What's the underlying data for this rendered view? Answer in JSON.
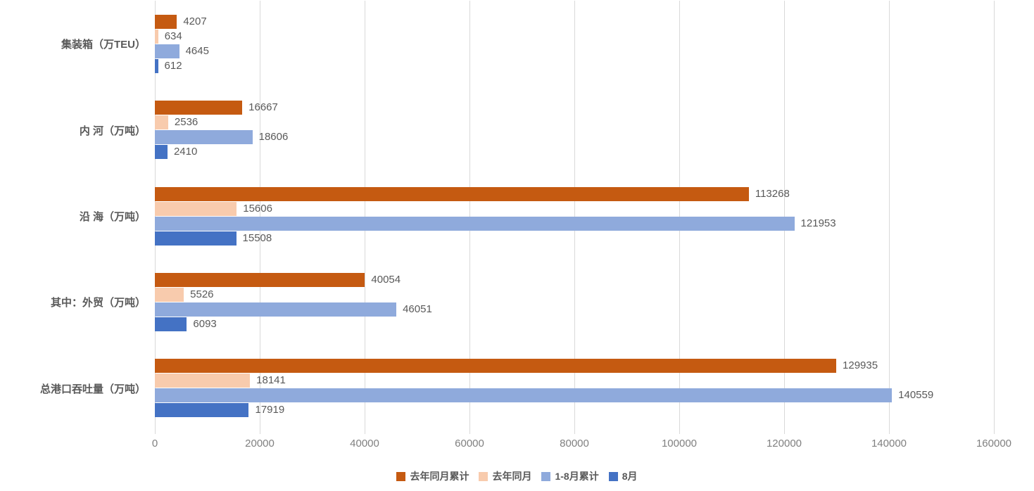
{
  "chart_data": {
    "type": "bar",
    "orientation": "horizontal",
    "title": "",
    "xlabel": "",
    "ylabel": "",
    "categories": [
      "集装箱（万TEU）",
      "内 河（万吨）",
      "沿 海（万吨）",
      "其中：外贸（万吨）",
      "总港口吞吐量（万吨）"
    ],
    "series": [
      {
        "name": "去年同月累计",
        "color": "#C55A11",
        "values": [
          4207,
          16667,
          113268,
          40054,
          129935
        ]
      },
      {
        "name": "去年同月",
        "color": "#F8CBAD",
        "values": [
          634,
          2536,
          15606,
          5526,
          18141
        ]
      },
      {
        "name": "1-8月累计",
        "color": "#8FAADC",
        "values": [
          4645,
          18606,
          121953,
          46051,
          140559
        ]
      },
      {
        "name": "8月",
        "color": "#4472C4",
        "values": [
          612,
          2410,
          15508,
          6093,
          17919
        ]
      }
    ],
    "data_labels_visible": true,
    "xlim": [
      0,
      160000
    ],
    "x_ticks": [
      0,
      20000,
      40000,
      60000,
      80000,
      100000,
      120000,
      140000,
      160000
    ],
    "grid": true,
    "legend_position": "bottom",
    "style": {
      "gridline_color": "#d9d9d9",
      "tick_label_color": "#808080",
      "value_label_color": "#595959",
      "category_label_color": "#595959",
      "background": "#ffffff"
    }
  }
}
